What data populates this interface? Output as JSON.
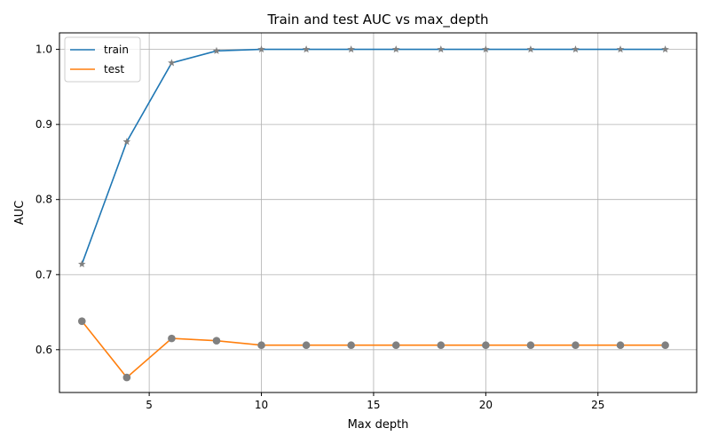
{
  "chart_data": {
    "type": "line",
    "title": "Train and test AUC vs max_depth",
    "xlabel": "Max depth",
    "ylabel": "AUC",
    "xlim": [
      1.0,
      29.4
    ],
    "ylim": [
      0.543,
      1.022
    ],
    "xticks": [
      5,
      10,
      15,
      20,
      25
    ],
    "yticks": [
      0.6,
      0.7,
      0.8,
      0.9,
      1.0
    ],
    "ytick_labels": [
      "0.6",
      "0.7",
      "0.8",
      "0.9",
      "1.0"
    ],
    "grid": true,
    "legend_position": "top-left",
    "x": [
      2,
      4,
      6,
      8,
      10,
      12,
      14,
      16,
      18,
      20,
      22,
      24,
      26,
      28
    ],
    "series": [
      {
        "name": "train",
        "color": "#1f77b4",
        "marker": "star",
        "marker_color": "#808080",
        "values": [
          0.714,
          0.877,
          0.982,
          0.998,
          1.0,
          1.0,
          1.0,
          1.0,
          1.0,
          1.0,
          1.0,
          1.0,
          1.0,
          1.0
        ]
      },
      {
        "name": "test",
        "color": "#ff7f0e",
        "marker": "circle",
        "marker_color": "#808080",
        "values": [
          0.638,
          0.563,
          0.615,
          0.612,
          0.606,
          0.606,
          0.606,
          0.606,
          0.606,
          0.606,
          0.606,
          0.606,
          0.606,
          0.606
        ]
      }
    ]
  }
}
